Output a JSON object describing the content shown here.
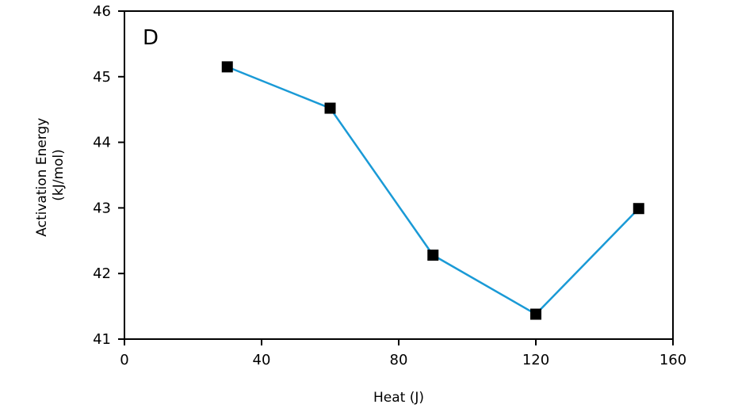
{
  "chart_data": {
    "type": "line",
    "panel_label": "D",
    "xlabel": "Heat (J)",
    "ylabel_lines": [
      "Activation Energy",
      "(kJ/mol)"
    ],
    "xlim": [
      0,
      160
    ],
    "ylim": [
      41,
      46
    ],
    "x_ticks": [
      0,
      40,
      80,
      120,
      160
    ],
    "y_ticks": [
      41,
      42,
      43,
      44,
      45,
      46
    ],
    "grid": false,
    "series": [
      {
        "x": [
          30,
          60,
          90,
          120,
          150
        ],
        "y": [
          45.15,
          44.52,
          42.28,
          41.38,
          42.99
        ],
        "line_color": "#1a9ad6",
        "marker": "square",
        "marker_color": "#000000"
      }
    ]
  }
}
